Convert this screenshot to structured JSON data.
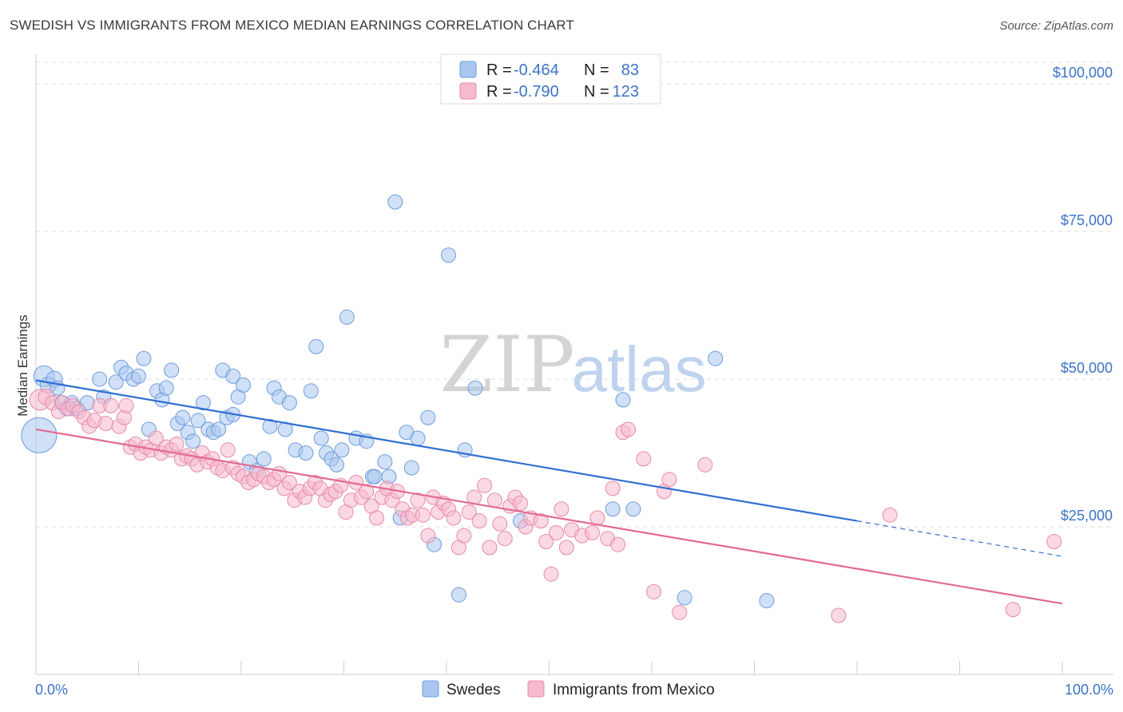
{
  "title": "SWEDISH VS IMMIGRANTS FROM MEXICO MEDIAN EARNINGS CORRELATION CHART",
  "source": "Source: ZipAtlas.com",
  "watermark": {
    "zip": "ZIP",
    "atlas": "atlas"
  },
  "colors": {
    "swedes_fill": "#a9c6f0",
    "swedes_stroke": "#6f9ddd",
    "swedes_line": "#2f6fd1",
    "mexico_fill": "#f6b9cd",
    "mexico_stroke": "#e88aab",
    "mexico_line": "#e26a93",
    "axis_text": "#3b74c6",
    "grid": "#dcdcdc"
  },
  "legend": {
    "r_label": "R =",
    "n_label": "N =",
    "rows": [
      {
        "r": "-0.464",
        "n": "83"
      },
      {
        "r": "-0.790",
        "n": "123"
      }
    ]
  },
  "chart_data": {
    "type": "scatter",
    "title": "SWEDISH VS IMMIGRANTS FROM MEXICO MEDIAN EARNINGS CORRELATION CHART",
    "xlabel": "",
    "ylabel": "Median Earnings",
    "xlim": [
      0,
      100
    ],
    "ylim": [
      0,
      105000
    ],
    "x_tick_labels": [
      "0.0%",
      "100.0%"
    ],
    "y_ticks": [
      25000,
      50000,
      75000,
      100000
    ],
    "y_tick_labels": [
      "$25,000",
      "$50,000",
      "$75,000",
      "$100,000"
    ],
    "grid": true,
    "legend_placement": "top-center",
    "series": [
      {
        "name": "Swedes",
        "r": -0.464,
        "n": 83,
        "trend": {
          "x0": 0,
          "y0": 49800,
          "x1": 80,
          "y1": 26000,
          "dashed_to_x": 100,
          "dashed_to_y": 20000
        },
        "points": [
          [
            0.3,
            40500,
            22
          ],
          [
            0.8,
            50500,
            13
          ],
          [
            1.2,
            49000,
            10
          ],
          [
            1.8,
            50000,
            10
          ],
          [
            2.1,
            48500,
            9
          ],
          [
            2.5,
            46000,
            9
          ],
          [
            3.0,
            45000,
            9
          ],
          [
            3.5,
            46000,
            9
          ],
          [
            4.0,
            45000,
            9
          ],
          [
            5.0,
            46000,
            9
          ],
          [
            6.2,
            50000,
            9
          ],
          [
            6.6,
            47000,
            9
          ],
          [
            7.8,
            49500,
            9
          ],
          [
            8.3,
            52000,
            9
          ],
          [
            8.8,
            51000,
            9
          ],
          [
            9.5,
            50000,
            9
          ],
          [
            10.0,
            50500,
            9
          ],
          [
            10.5,
            53500,
            9
          ],
          [
            11.0,
            41500,
            9
          ],
          [
            11.8,
            48000,
            9
          ],
          [
            12.3,
            46500,
            9
          ],
          [
            12.7,
            48500,
            9
          ],
          [
            13.2,
            51500,
            9
          ],
          [
            13.8,
            42500,
            9
          ],
          [
            14.3,
            43500,
            9
          ],
          [
            14.8,
            41000,
            9
          ],
          [
            15.3,
            39500,
            9
          ],
          [
            15.8,
            43000,
            9
          ],
          [
            16.3,
            46000,
            9
          ],
          [
            16.8,
            41500,
            9
          ],
          [
            17.3,
            41000,
            9
          ],
          [
            17.8,
            41500,
            9
          ],
          [
            18.2,
            51500,
            9
          ],
          [
            18.6,
            43500,
            9
          ],
          [
            19.2,
            44000,
            9
          ],
          [
            19.2,
            50500,
            9
          ],
          [
            19.7,
            47000,
            9
          ],
          [
            20.2,
            49000,
            9
          ],
          [
            20.8,
            36000,
            9
          ],
          [
            21.5,
            34500,
            9
          ],
          [
            22.2,
            36500,
            9
          ],
          [
            22.8,
            42000,
            9
          ],
          [
            23.2,
            48500,
            9
          ],
          [
            23.7,
            47000,
            9
          ],
          [
            24.3,
            41500,
            9
          ],
          [
            24.7,
            46000,
            9
          ],
          [
            25.3,
            38000,
            9
          ],
          [
            26.3,
            37500,
            9
          ],
          [
            26.8,
            48000,
            9
          ],
          [
            27.3,
            55500,
            9
          ],
          [
            27.8,
            40000,
            9
          ],
          [
            28.3,
            37500,
            9
          ],
          [
            28.8,
            36500,
            9
          ],
          [
            29.3,
            35500,
            9
          ],
          [
            29.8,
            38000,
            9
          ],
          [
            30.3,
            60500,
            9
          ],
          [
            31.2,
            40000,
            9
          ],
          [
            32.2,
            39500,
            9
          ],
          [
            32.8,
            33500,
            9
          ],
          [
            33.0,
            33500,
            9
          ],
          [
            34.0,
            36000,
            9
          ],
          [
            34.4,
            33500,
            9
          ],
          [
            35.0,
            80000,
            9
          ],
          [
            35.5,
            26500,
            9
          ],
          [
            36.1,
            41000,
            9
          ],
          [
            36.6,
            35000,
            9
          ],
          [
            37.2,
            40000,
            9
          ],
          [
            38.2,
            43500,
            9
          ],
          [
            38.8,
            22000,
            9
          ],
          [
            40.2,
            71000,
            9
          ],
          [
            41.2,
            13500,
            9
          ],
          [
            41.8,
            38000,
            9
          ],
          [
            42.8,
            48500,
            9
          ],
          [
            47.2,
            26000,
            9
          ],
          [
            56.2,
            28000,
            9
          ],
          [
            57.2,
            46500,
            9
          ],
          [
            58.2,
            28000,
            9
          ],
          [
            63.2,
            13000,
            9
          ],
          [
            66.2,
            53500,
            9
          ],
          [
            71.2,
            12500,
            9
          ]
        ]
      },
      {
        "name": "Immigrants from Mexico",
        "r": -0.79,
        "n": 123,
        "trend": {
          "x0": 0,
          "y0": 41500,
          "x1": 100,
          "y1": 12000
        },
        "points": [
          [
            0.4,
            46500,
            13
          ],
          [
            1.0,
            47000,
            10
          ],
          [
            1.6,
            46000,
            9
          ],
          [
            2.2,
            44500,
            9
          ],
          [
            2.6,
            46000,
            9
          ],
          [
            3.2,
            45000,
            9
          ],
          [
            3.6,
            45500,
            9
          ],
          [
            4.2,
            44500,
            9
          ],
          [
            4.7,
            43500,
            9
          ],
          [
            5.2,
            42000,
            9
          ],
          [
            5.7,
            43000,
            9
          ],
          [
            6.2,
            45500,
            9
          ],
          [
            6.8,
            42500,
            9
          ],
          [
            7.3,
            45500,
            9
          ],
          [
            8.1,
            42000,
            9
          ],
          [
            8.6,
            43500,
            9
          ],
          [
            8.8,
            45500,
            9
          ],
          [
            9.2,
            38500,
            9
          ],
          [
            9.7,
            39000,
            9
          ],
          [
            10.2,
            37500,
            9
          ],
          [
            10.7,
            38500,
            9
          ],
          [
            11.2,
            38000,
            9
          ],
          [
            11.7,
            40000,
            9
          ],
          [
            12.2,
            37500,
            9
          ],
          [
            12.7,
            38500,
            9
          ],
          [
            13.2,
            38000,
            9
          ],
          [
            13.7,
            39000,
            9
          ],
          [
            14.2,
            36500,
            9
          ],
          [
            14.7,
            37000,
            9
          ],
          [
            15.2,
            36500,
            9
          ],
          [
            15.7,
            35500,
            9
          ],
          [
            16.2,
            37500,
            9
          ],
          [
            16.7,
            36000,
            9
          ],
          [
            17.2,
            36500,
            9
          ],
          [
            17.7,
            35000,
            9
          ],
          [
            18.2,
            34500,
            9
          ],
          [
            18.7,
            38000,
            9
          ],
          [
            19.2,
            35000,
            9
          ],
          [
            19.7,
            34000,
            9
          ],
          [
            20.2,
            33500,
            9
          ],
          [
            20.7,
            32500,
            9
          ],
          [
            21.2,
            33000,
            9
          ],
          [
            21.7,
            34000,
            9
          ],
          [
            22.2,
            33500,
            9
          ],
          [
            22.7,
            32500,
            9
          ],
          [
            23.2,
            33000,
            9
          ],
          [
            23.7,
            34000,
            9
          ],
          [
            24.2,
            31500,
            9
          ],
          [
            24.7,
            32500,
            9
          ],
          [
            25.2,
            29500,
            9
          ],
          [
            25.7,
            31000,
            9
          ],
          [
            26.2,
            30000,
            9
          ],
          [
            26.7,
            31500,
            9
          ],
          [
            27.2,
            32500,
            9
          ],
          [
            27.7,
            31500,
            9
          ],
          [
            28.2,
            29500,
            9
          ],
          [
            28.7,
            30500,
            9
          ],
          [
            29.2,
            31000,
            9
          ],
          [
            29.7,
            32000,
            9
          ],
          [
            30.2,
            27500,
            9
          ],
          [
            30.7,
            29500,
            9
          ],
          [
            31.2,
            32500,
            9
          ],
          [
            31.7,
            30000,
            9
          ],
          [
            32.2,
            31000,
            9
          ],
          [
            32.7,
            28500,
            9
          ],
          [
            33.2,
            26500,
            9
          ],
          [
            33.7,
            30000,
            9
          ],
          [
            34.2,
            31500,
            9
          ],
          [
            34.7,
            29500,
            9
          ],
          [
            35.2,
            31000,
            9
          ],
          [
            35.7,
            28000,
            9
          ],
          [
            36.2,
            26500,
            9
          ],
          [
            36.7,
            27000,
            9
          ],
          [
            37.2,
            29500,
            9
          ],
          [
            37.7,
            27000,
            9
          ],
          [
            38.2,
            23500,
            9
          ],
          [
            38.7,
            30000,
            9
          ],
          [
            39.2,
            27500,
            9
          ],
          [
            39.7,
            29000,
            9
          ],
          [
            40.2,
            28000,
            9
          ],
          [
            40.7,
            26500,
            9
          ],
          [
            41.2,
            21500,
            9
          ],
          [
            41.7,
            23500,
            9
          ],
          [
            42.2,
            27500,
            9
          ],
          [
            42.7,
            30000,
            9
          ],
          [
            43.2,
            26000,
            9
          ],
          [
            43.7,
            32000,
            9
          ],
          [
            44.2,
            21500,
            9
          ],
          [
            44.7,
            29500,
            9
          ],
          [
            45.2,
            25500,
            9
          ],
          [
            45.7,
            23000,
            9
          ],
          [
            46.2,
            28500,
            9
          ],
          [
            46.7,
            30000,
            9
          ],
          [
            47.2,
            29000,
            9
          ],
          [
            47.7,
            25000,
            9
          ],
          [
            48.2,
            26500,
            9
          ],
          [
            49.2,
            26000,
            9
          ],
          [
            49.7,
            22500,
            9
          ],
          [
            50.2,
            17000,
            9
          ],
          [
            50.7,
            24000,
            9
          ],
          [
            51.2,
            28000,
            9
          ],
          [
            51.7,
            21500,
            9
          ],
          [
            52.2,
            24500,
            9
          ],
          [
            53.2,
            23500,
            9
          ],
          [
            54.2,
            24000,
            9
          ],
          [
            54.7,
            26500,
            9
          ],
          [
            55.7,
            23000,
            9
          ],
          [
            56.2,
            31500,
            9
          ],
          [
            56.7,
            22000,
            9
          ],
          [
            57.2,
            41000,
            9
          ],
          [
            57.7,
            41500,
            9
          ],
          [
            59.2,
            36500,
            9
          ],
          [
            60.2,
            14000,
            9
          ],
          [
            61.2,
            31000,
            9
          ],
          [
            61.7,
            33000,
            9
          ],
          [
            62.7,
            10500,
            9
          ],
          [
            65.2,
            35500,
            9
          ],
          [
            78.2,
            10000,
            9
          ],
          [
            83.2,
            27000,
            9
          ],
          [
            95.2,
            11000,
            9
          ],
          [
            99.2,
            22500,
            9
          ]
        ]
      }
    ]
  },
  "bottom_legend": [
    {
      "label": "Swedes"
    },
    {
      "label": "Immigrants from Mexico"
    }
  ]
}
